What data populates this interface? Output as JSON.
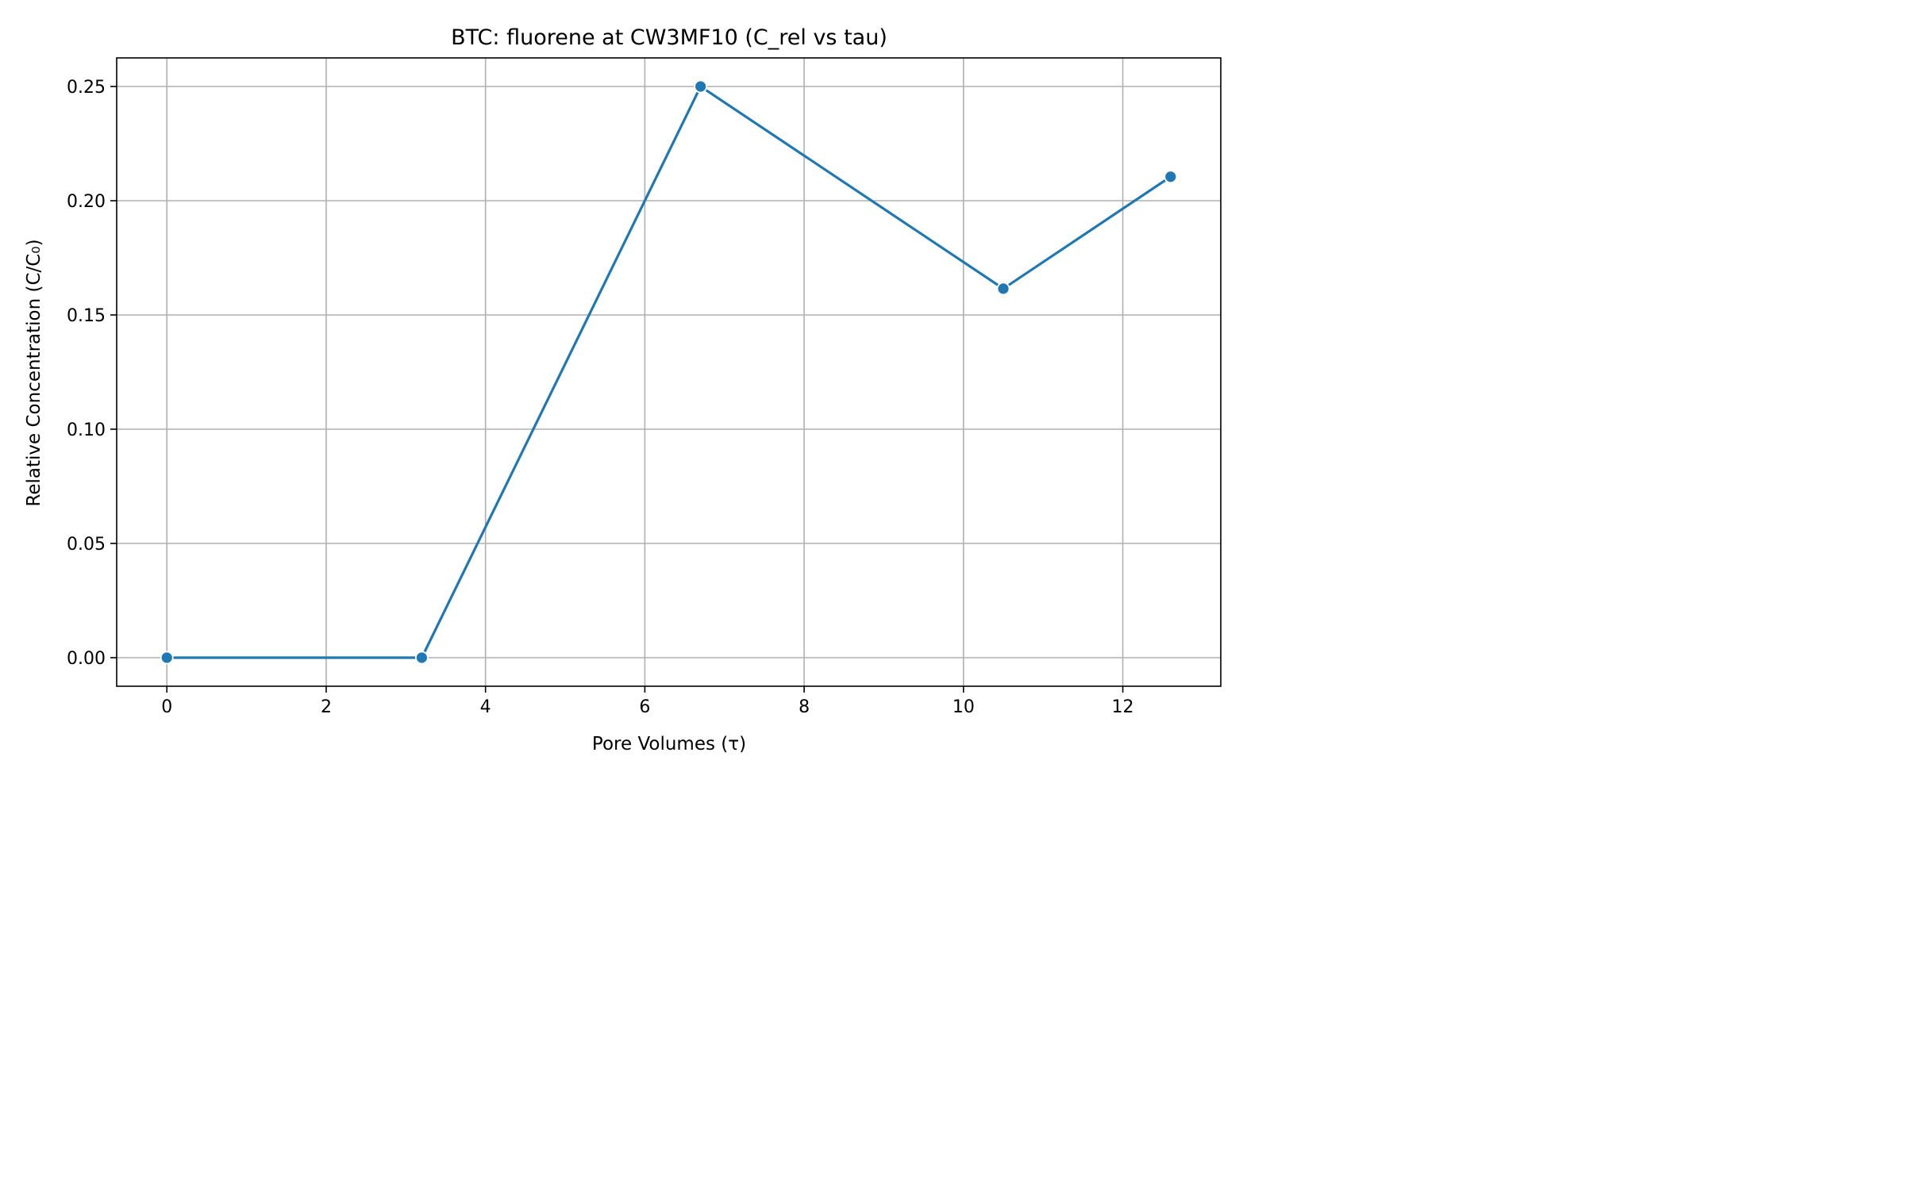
{
  "chart_data": {
    "type": "line",
    "title": "BTC: fluorene at CW3MF10 (C_rel vs tau)",
    "xlabel": "Pore Volumes (τ)",
    "ylabel": "Relative Concentration (C/C₀)",
    "xlim": [
      -0.63,
      13.23
    ],
    "ylim": [
      -0.0125,
      0.2625
    ],
    "x_ticks": [
      0,
      2,
      4,
      6,
      8,
      10,
      12
    ],
    "x_tick_labels": [
      "0",
      "2",
      "4",
      "6",
      "8",
      "10",
      "12"
    ],
    "y_ticks": [
      0.0,
      0.05,
      0.1,
      0.15,
      0.2,
      0.25
    ],
    "y_tick_labels": [
      "0.00",
      "0.05",
      "0.10",
      "0.15",
      "0.20",
      "0.25"
    ],
    "grid": true,
    "series": [
      {
        "x": [
          0.0,
          3.2,
          6.7,
          10.5,
          12.6
        ],
        "y": [
          0.0,
          0.0,
          0.25,
          0.1615,
          0.2105
        ],
        "color": "#1f77b4",
        "marker": "circle"
      }
    ]
  }
}
